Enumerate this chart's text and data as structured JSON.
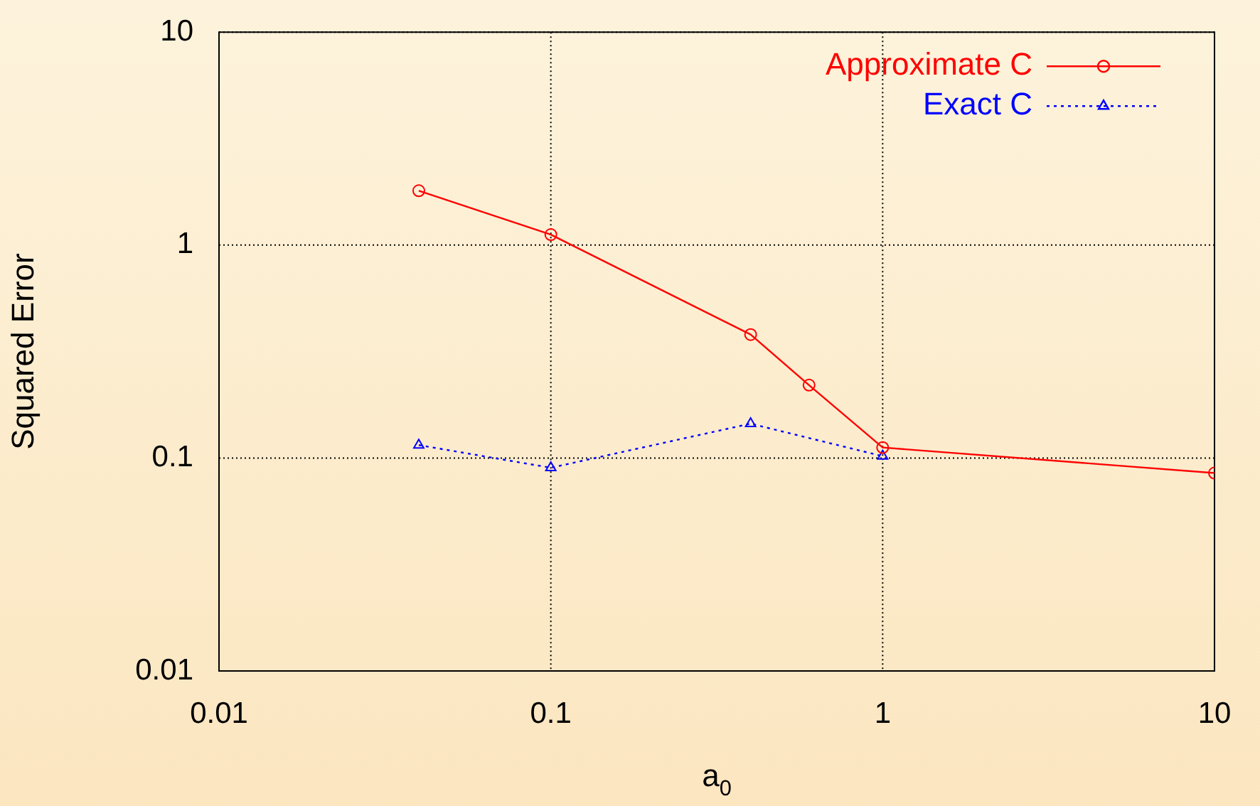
{
  "chart_data": {
    "type": "line",
    "xlabel": "a$_{0}$",
    "ylabel": "Squared Error",
    "log": "xy",
    "xlim": [
      0.01,
      10
    ],
    "ylim": [
      0.01,
      10
    ],
    "xticks": [
      0.01,
      0.1,
      1,
      10
    ],
    "yticks": [
      0.01,
      0.1,
      1,
      10
    ],
    "grid": true,
    "legend": "top right",
    "series": [
      {
        "name": "Approximate C",
        "color": "#ff0000",
        "marker": "circle",
        "line_style": "solid",
        "x": [
          0.04,
          0.1,
          0.4,
          0.6,
          1,
          10
        ],
        "values": [
          1.8,
          1.12,
          0.38,
          0.22,
          0.112,
          0.085
        ]
      },
      {
        "name": "Exact C",
        "color": "#0000ff",
        "marker": "triangle",
        "line_style": "dotted",
        "x": [
          0.04,
          0.1,
          0.4,
          1
        ],
        "values": [
          0.115,
          0.09,
          0.145,
          0.102
        ]
      }
    ]
  }
}
